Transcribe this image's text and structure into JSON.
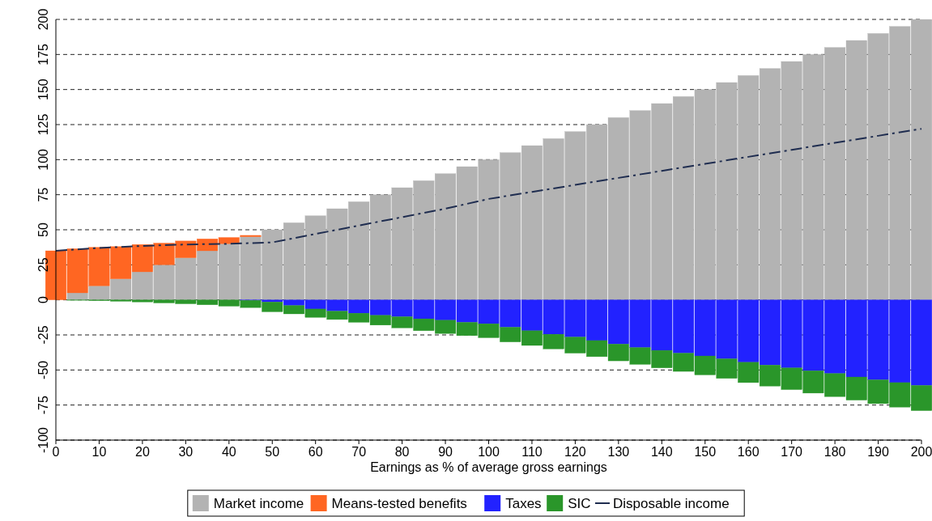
{
  "chart_data": {
    "type": "bar",
    "stacked": true,
    "xlabel": "Earnings as % of average gross earnings",
    "x": [
      0,
      5,
      10,
      15,
      20,
      25,
      30,
      35,
      40,
      45,
      50,
      55,
      60,
      65,
      70,
      75,
      80,
      85,
      90,
      95,
      100,
      105,
      110,
      115,
      120,
      125,
      130,
      135,
      140,
      145,
      150,
      155,
      160,
      165,
      170,
      175,
      180,
      185,
      190,
      195,
      200
    ],
    "xlim": [
      0,
      200
    ],
    "xticks": [
      0,
      10,
      20,
      30,
      40,
      50,
      60,
      70,
      80,
      90,
      100,
      110,
      120,
      130,
      140,
      150,
      160,
      170,
      180,
      190,
      200
    ],
    "ylim": [
      -100,
      200
    ],
    "yticks": [
      -100,
      -75,
      -50,
      -25,
      0,
      25,
      50,
      75,
      100,
      125,
      150,
      175,
      200
    ],
    "grid": "y",
    "legend": "bottom",
    "series": [
      {
        "name": "Market income",
        "color": "#b3b3b3",
        "values": [
          0,
          5,
          10,
          15,
          20,
          25,
          30,
          35,
          40,
          45,
          50,
          55,
          60,
          65,
          70,
          75,
          80,
          85,
          90,
          95,
          100,
          105,
          110,
          115,
          120,
          125,
          130,
          135,
          140,
          145,
          150,
          155,
          160,
          165,
          170,
          175,
          180,
          185,
          190,
          195,
          200
        ]
      },
      {
        "name": "Means-tested benefits",
        "color": "#ff6622",
        "values": [
          35,
          31.5,
          27.5,
          23,
          19.5,
          15.5,
          12,
          8.5,
          4.5,
          1,
          0,
          0,
          0,
          0,
          0,
          0,
          0,
          0,
          0,
          0,
          0,
          0,
          0,
          0,
          0,
          0,
          0,
          0,
          0,
          0,
          0,
          0,
          0,
          0,
          0,
          0,
          0,
          0,
          0,
          0,
          0
        ]
      },
      {
        "name": "Taxes",
        "color": "#2222ff",
        "values": [
          0,
          0,
          0,
          0,
          0,
          0,
          0,
          0,
          0,
          -0.3,
          -1.5,
          -4,
          -6.5,
          -8,
          -9.5,
          -11,
          -12,
          -13.5,
          -14.5,
          -16,
          -17,
          -19.5,
          -22,
          -24.5,
          -26.5,
          -29,
          -31.5,
          -34,
          -36,
          -38,
          -40,
          -42,
          -44.5,
          -46.5,
          -48.5,
          -50.5,
          -52.5,
          -55,
          -57,
          -59,
          -61
        ]
      },
      {
        "name": "SIC",
        "color": "#2a962a",
        "values": [
          0,
          -0.3,
          -0.6,
          -1,
          -1.5,
          -2.2,
          -2.8,
          -3.5,
          -4.5,
          -5.2,
          -7,
          -6,
          -6,
          -6,
          -6.5,
          -7,
          -8,
          -8.5,
          -9.5,
          -9.5,
          -10,
          -10.5,
          -10.5,
          -10.5,
          -11.5,
          -11.5,
          -12,
          -12,
          -12.5,
          -13,
          -13.5,
          -14,
          -14.5,
          -15,
          -15.5,
          -16,
          -16.5,
          -16.5,
          -17,
          -17.5,
          -18
        ]
      },
      {
        "name": "Disposable income",
        "type": "line",
        "color": "#1f2d50",
        "line_style": "dashed",
        "marker": "none",
        "x": [
          0,
          10,
          20,
          30,
          40,
          50,
          60,
          70,
          80,
          90,
          100,
          110,
          120,
          130,
          140,
          150,
          160,
          170,
          180,
          190,
          200
        ],
        "values": [
          35,
          37,
          38.5,
          39.5,
          40,
          41,
          47,
          53,
          59,
          65,
          72,
          77,
          82,
          87,
          92,
          97,
          102,
          107,
          112,
          117,
          122
        ]
      }
    ]
  }
}
